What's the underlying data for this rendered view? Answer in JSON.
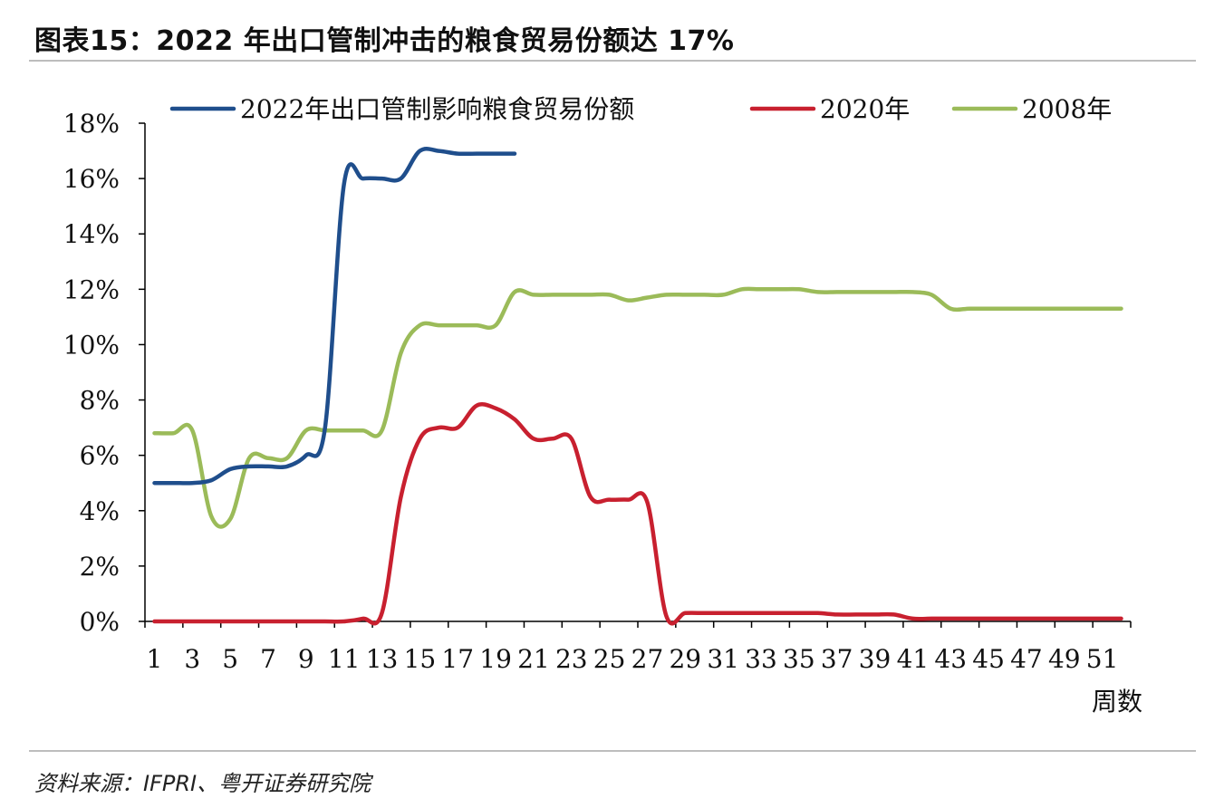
{
  "title": "图表15：2022 年出口管制冲击的粮食贸易份额达 17%",
  "source": "资料来源：IFPRI、粤开证券研究院",
  "chart_data": {
    "type": "line",
    "xlabel": "周数",
    "ylabel": "",
    "ylim": [
      0,
      18
    ],
    "xlim": [
      1,
      52
    ],
    "y_ticks": [
      "0%",
      "2%",
      "4%",
      "6%",
      "8%",
      "10%",
      "12%",
      "14%",
      "16%",
      "18%"
    ],
    "x_ticks": [
      "1",
      "3",
      "5",
      "7",
      "9",
      "11",
      "13",
      "15",
      "17",
      "19",
      "21",
      "23",
      "25",
      "27",
      "29",
      "31",
      "33",
      "35",
      "37",
      "39",
      "41",
      "43",
      "45",
      "47",
      "49",
      "51"
    ],
    "legend_position": "top",
    "grid": false,
    "series": [
      {
        "name": "2022年出口管制影响粮食贸易份额",
        "color": "#1f4e8c",
        "x": [
          1,
          2,
          3,
          4,
          5,
          6,
          7,
          8,
          9,
          10,
          11,
          12,
          13,
          14,
          15,
          16,
          17,
          18,
          19,
          20
        ],
        "values": [
          5.0,
          5.0,
          5.0,
          5.1,
          5.5,
          5.6,
          5.6,
          5.6,
          6.0,
          7.0,
          15.8,
          16.0,
          16.0,
          16.0,
          17.0,
          17.0,
          16.9,
          16.9,
          16.9,
          16.9
        ]
      },
      {
        "name": "2020年",
        "color": "#c8202f",
        "x": [
          1,
          2,
          3,
          4,
          5,
          6,
          7,
          8,
          9,
          10,
          11,
          12,
          13,
          14,
          15,
          16,
          17,
          18,
          19,
          20,
          21,
          22,
          23,
          24,
          25,
          26,
          27,
          28,
          29,
          30,
          31,
          32,
          33,
          34,
          35,
          36,
          37,
          38,
          39,
          40,
          41,
          42,
          43,
          44,
          45,
          46,
          47,
          48,
          49,
          50,
          51,
          52
        ],
        "values": [
          0,
          0,
          0,
          0,
          0,
          0,
          0,
          0,
          0,
          0,
          0,
          0.1,
          0.3,
          4.5,
          6.6,
          7.0,
          7.0,
          7.8,
          7.7,
          7.3,
          6.6,
          6.6,
          6.6,
          4.5,
          4.4,
          4.4,
          4.3,
          0.2,
          0.3,
          0.3,
          0.3,
          0.3,
          0.3,
          0.3,
          0.3,
          0.3,
          0.25,
          0.25,
          0.25,
          0.25,
          0.1,
          0.1,
          0.1,
          0.1,
          0.1,
          0.1,
          0.1,
          0.1,
          0.1,
          0.1,
          0.1,
          0.1
        ]
      },
      {
        "name": "2008年",
        "color": "#9bbb59",
        "x": [
          1,
          2,
          3,
          4,
          5,
          6,
          7,
          8,
          9,
          10,
          11,
          12,
          13,
          14,
          15,
          16,
          17,
          18,
          19,
          20,
          21,
          22,
          23,
          24,
          25,
          26,
          27,
          28,
          29,
          30,
          31,
          32,
          33,
          34,
          35,
          36,
          37,
          38,
          39,
          40,
          41,
          42,
          43,
          44,
          45,
          46,
          47,
          48,
          49,
          50,
          51,
          52
        ],
        "values": [
          6.8,
          6.8,
          6.9,
          3.8,
          3.7,
          5.9,
          5.9,
          5.9,
          6.9,
          6.9,
          6.9,
          6.9,
          6.9,
          9.7,
          10.7,
          10.7,
          10.7,
          10.7,
          10.7,
          11.9,
          11.8,
          11.8,
          11.8,
          11.8,
          11.8,
          11.6,
          11.7,
          11.8,
          11.8,
          11.8,
          11.8,
          12.0,
          12.0,
          12.0,
          12.0,
          11.9,
          11.9,
          11.9,
          11.9,
          11.9,
          11.9,
          11.8,
          11.3,
          11.3,
          11.3,
          11.3,
          11.3,
          11.3,
          11.3,
          11.3,
          11.3,
          11.3
        ]
      }
    ]
  }
}
